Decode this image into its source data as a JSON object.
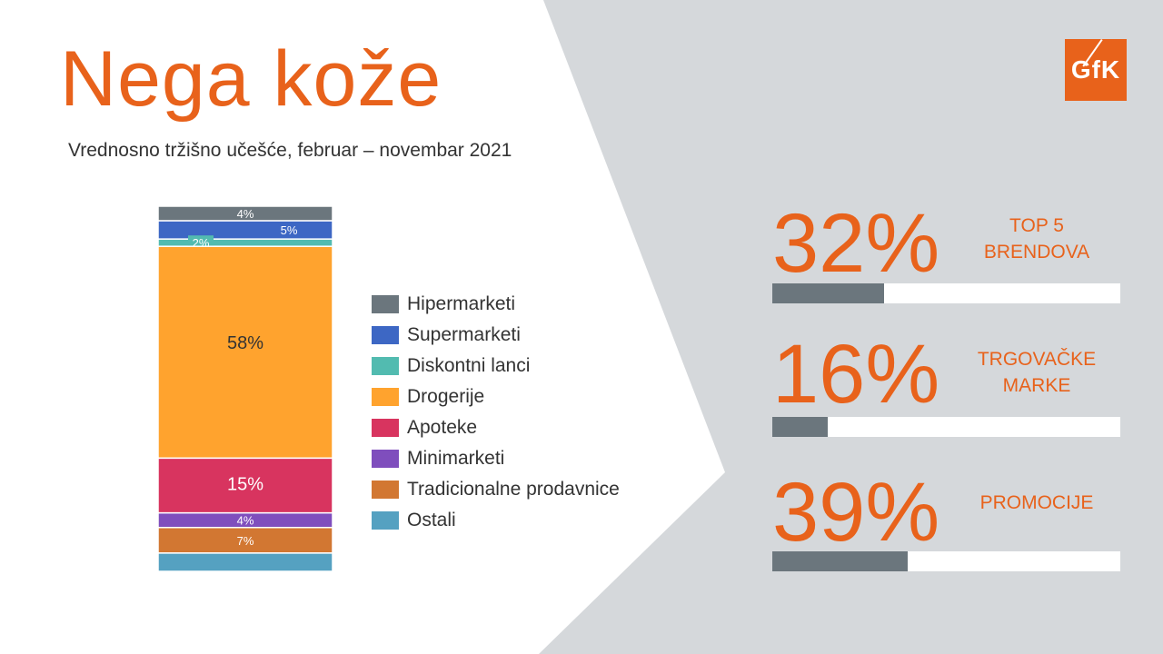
{
  "page": {
    "title": "Nega kože",
    "subtitle": "Vrednosno tržišno učešće, februar – novembar 2021"
  },
  "logo": {
    "text": "GfK"
  },
  "colors": {
    "accent": "#e8621b",
    "panel": "#d5d8db",
    "bar_fill": "#6b767d",
    "bar_track": "#ffffff"
  },
  "chart_data": {
    "type": "bar",
    "stacked": true,
    "orientation": "vertical",
    "categories": [
      ""
    ],
    "ylim": [
      0,
      100
    ],
    "grid": false,
    "legend_position": "right",
    "series": [
      {
        "name": "Hipermarketi",
        "values": [
          4
        ],
        "label": "4%",
        "color": "#6b767d"
      },
      {
        "name": "Supermarketi",
        "values": [
          5
        ],
        "label": "5%",
        "color": "#3d67c4"
      },
      {
        "name": "Diskontni lanci",
        "values": [
          2
        ],
        "label": "2%",
        "color": "#52bbb0"
      },
      {
        "name": "Drogerije",
        "values": [
          58
        ],
        "label": "58%",
        "color": "#ffa32e"
      },
      {
        "name": "Apoteke",
        "values": [
          15
        ],
        "label": "15%",
        "color": "#d8345f"
      },
      {
        "name": "Minimarketi",
        "values": [
          4
        ],
        "label": "4%",
        "color": "#7f4ebd"
      },
      {
        "name": "Tradicionalne prodavnice",
        "values": [
          7
        ],
        "label": "7%",
        "color": "#d27732"
      },
      {
        "name": "Ostali",
        "values": [
          5
        ],
        "label": "",
        "color": "#55a1c1"
      }
    ]
  },
  "kpis": [
    {
      "value": 32,
      "value_label": "32%",
      "label": "TOP 5\nBRENDOVA"
    },
    {
      "value": 16,
      "value_label": "16%",
      "label": "TRGOVAČKE\nMARKE"
    },
    {
      "value": 39,
      "value_label": "39%",
      "label": "PROMOCIJE"
    }
  ]
}
